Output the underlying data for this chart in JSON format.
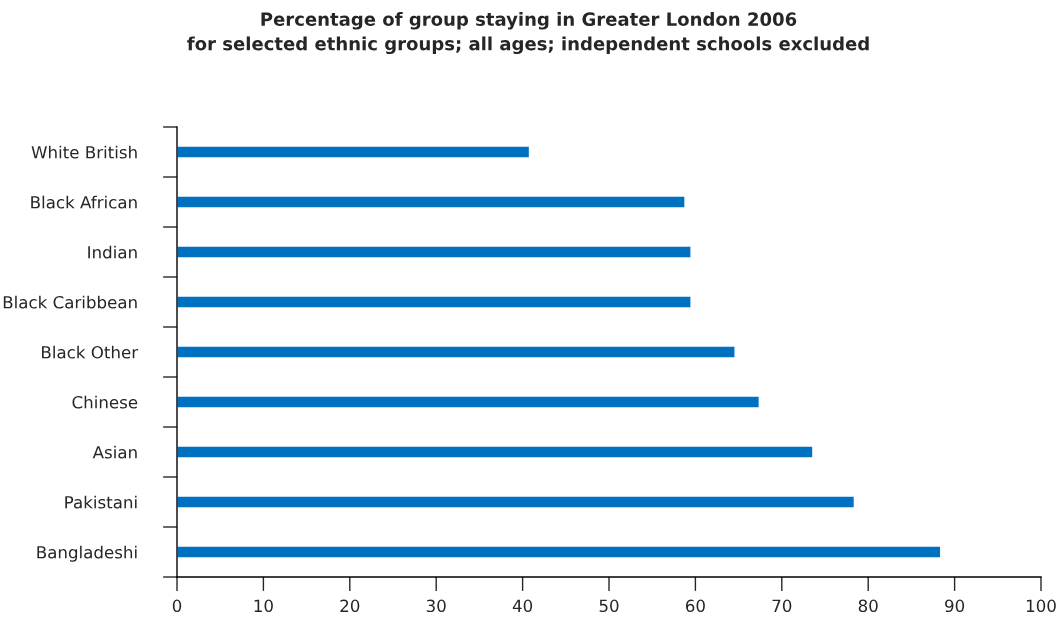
{
  "chart_data": {
    "type": "bar",
    "orientation": "horizontal",
    "title": "Percentage of group staying in Greater London 2006\nfor selected ethnic groups; all ages; independent schools excluded",
    "categories": [
      "White British",
      "Black African",
      "Indian",
      "Black Caribbean",
      "Black Other",
      "Chinese",
      "Asian",
      "Pakistani",
      "Bangladeshi"
    ],
    "values": [
      40.8,
      58.8,
      59.5,
      59.5,
      64.6,
      67.4,
      73.6,
      78.4,
      88.4
    ],
    "color": "#0070c0",
    "xlim": [
      0,
      100
    ],
    "xticks": [
      0,
      10,
      20,
      30,
      40,
      50,
      60,
      70,
      80,
      90,
      100
    ],
    "grid": false,
    "legend": false
  }
}
